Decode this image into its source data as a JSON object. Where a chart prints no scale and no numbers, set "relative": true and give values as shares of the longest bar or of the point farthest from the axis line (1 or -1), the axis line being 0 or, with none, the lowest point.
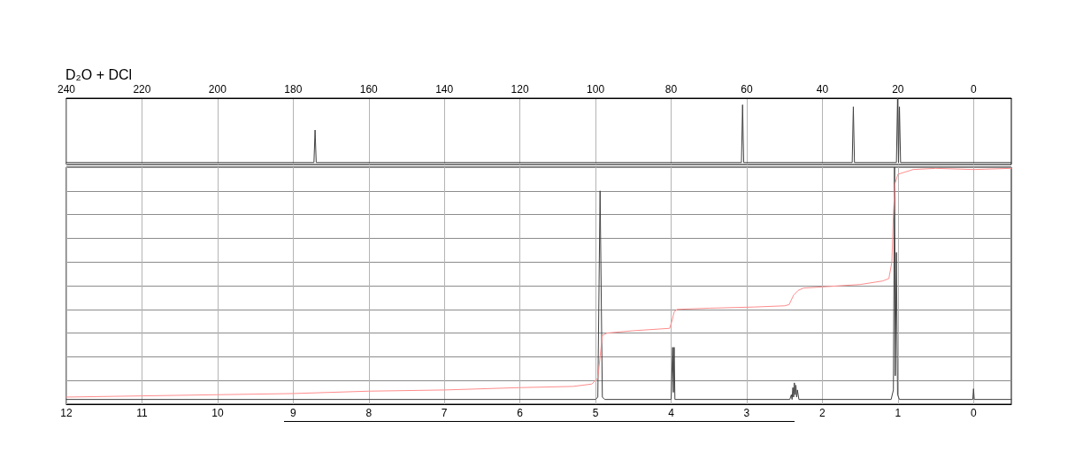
{
  "chart_data": [
    {
      "type": "line",
      "title": "D₂O + DCl",
      "relative": true,
      "marker": "none",
      "grid": "x",
      "tick_labels": "x",
      "xlim": [
        240,
        -10
      ],
      "xticks": [
        240,
        220,
        200,
        180,
        160,
        140,
        120,
        100,
        80,
        60,
        40,
        20,
        0
      ],
      "x": [
        240,
        174.5,
        174.2,
        173.9,
        61.4,
        61.1,
        60.8,
        32.1,
        31.8,
        31.5,
        20.4,
        20.1,
        19.85,
        19.6,
        19.3,
        -10
      ],
      "series": [
        {
          "color": "#404040",
          "values": [
            0.03,
            0.03,
            0.52,
            0.03,
            0.03,
            0.9,
            0.03,
            0.03,
            0.87,
            0.03,
            0.03,
            1.0,
            0.03,
            0.87,
            0.03,
            0.03
          ]
        }
      ]
    },
    {
      "type": "line",
      "relative": true,
      "marker": "none",
      "grid": true,
      "tick_labels": "x",
      "xlim": [
        12,
        -0.5
      ],
      "xticks": [
        12,
        11,
        10,
        9,
        8,
        7,
        6,
        5,
        4,
        3,
        2,
        1,
        0
      ],
      "series": [
        {
          "color": "#404040",
          "x": [
            12,
            5.0,
            4.97,
            4.94,
            4.91,
            4.88,
            4.0,
            3.98,
            3.97,
            3.96,
            3.95,
            2.43,
            2.41,
            2.4,
            2.39,
            2.38,
            2.37,
            2.36,
            2.35,
            2.34,
            2.33,
            2.31,
            1.09,
            1.06,
            1.045,
            1.035,
            1.02,
            1.005,
            0.98,
            0.01,
            0,
            -0.01,
            -0.5
          ],
          "values": [
            0.02,
            0.02,
            0.03,
            0.9,
            0.03,
            0.02,
            0.02,
            0.24,
            0.05,
            0.24,
            0.02,
            0.02,
            0.04,
            0.02,
            0.07,
            0.03,
            0.09,
            0.04,
            0.08,
            0.03,
            0.06,
            0.02,
            0.02,
            0.06,
            1.0,
            0.12,
            0.64,
            0.04,
            0.02,
            0.02,
            0.065,
            0.02,
            0.02
          ]
        },
        {
          "color": "#ff8c8c",
          "x": [
            12,
            11,
            10,
            9,
            8,
            7,
            6,
            5.3,
            5.05,
            4.97,
            4.94,
            4.91,
            4.85,
            4.5,
            4.02,
            3.99,
            3.96,
            3.92,
            3.5,
            2.9,
            2.5,
            2.44,
            2.38,
            2.32,
            2.25,
            2.0,
            1.5,
            1.2,
            1.12,
            1.08,
            1.06,
            1.04,
            1.0,
            0.8,
            0.5,
            0,
            -0.5
          ],
          "values": [
            0.03,
            0.035,
            0.04,
            0.045,
            0.055,
            0.06,
            0.07,
            0.075,
            0.085,
            0.11,
            0.2,
            0.29,
            0.3,
            0.31,
            0.32,
            0.35,
            0.39,
            0.4,
            0.405,
            0.41,
            0.415,
            0.42,
            0.46,
            0.48,
            0.49,
            0.495,
            0.505,
            0.52,
            0.53,
            0.6,
            0.8,
            0.93,
            0.97,
            0.99,
            0.995,
            0.99,
            0.995
          ]
        }
      ]
    }
  ]
}
